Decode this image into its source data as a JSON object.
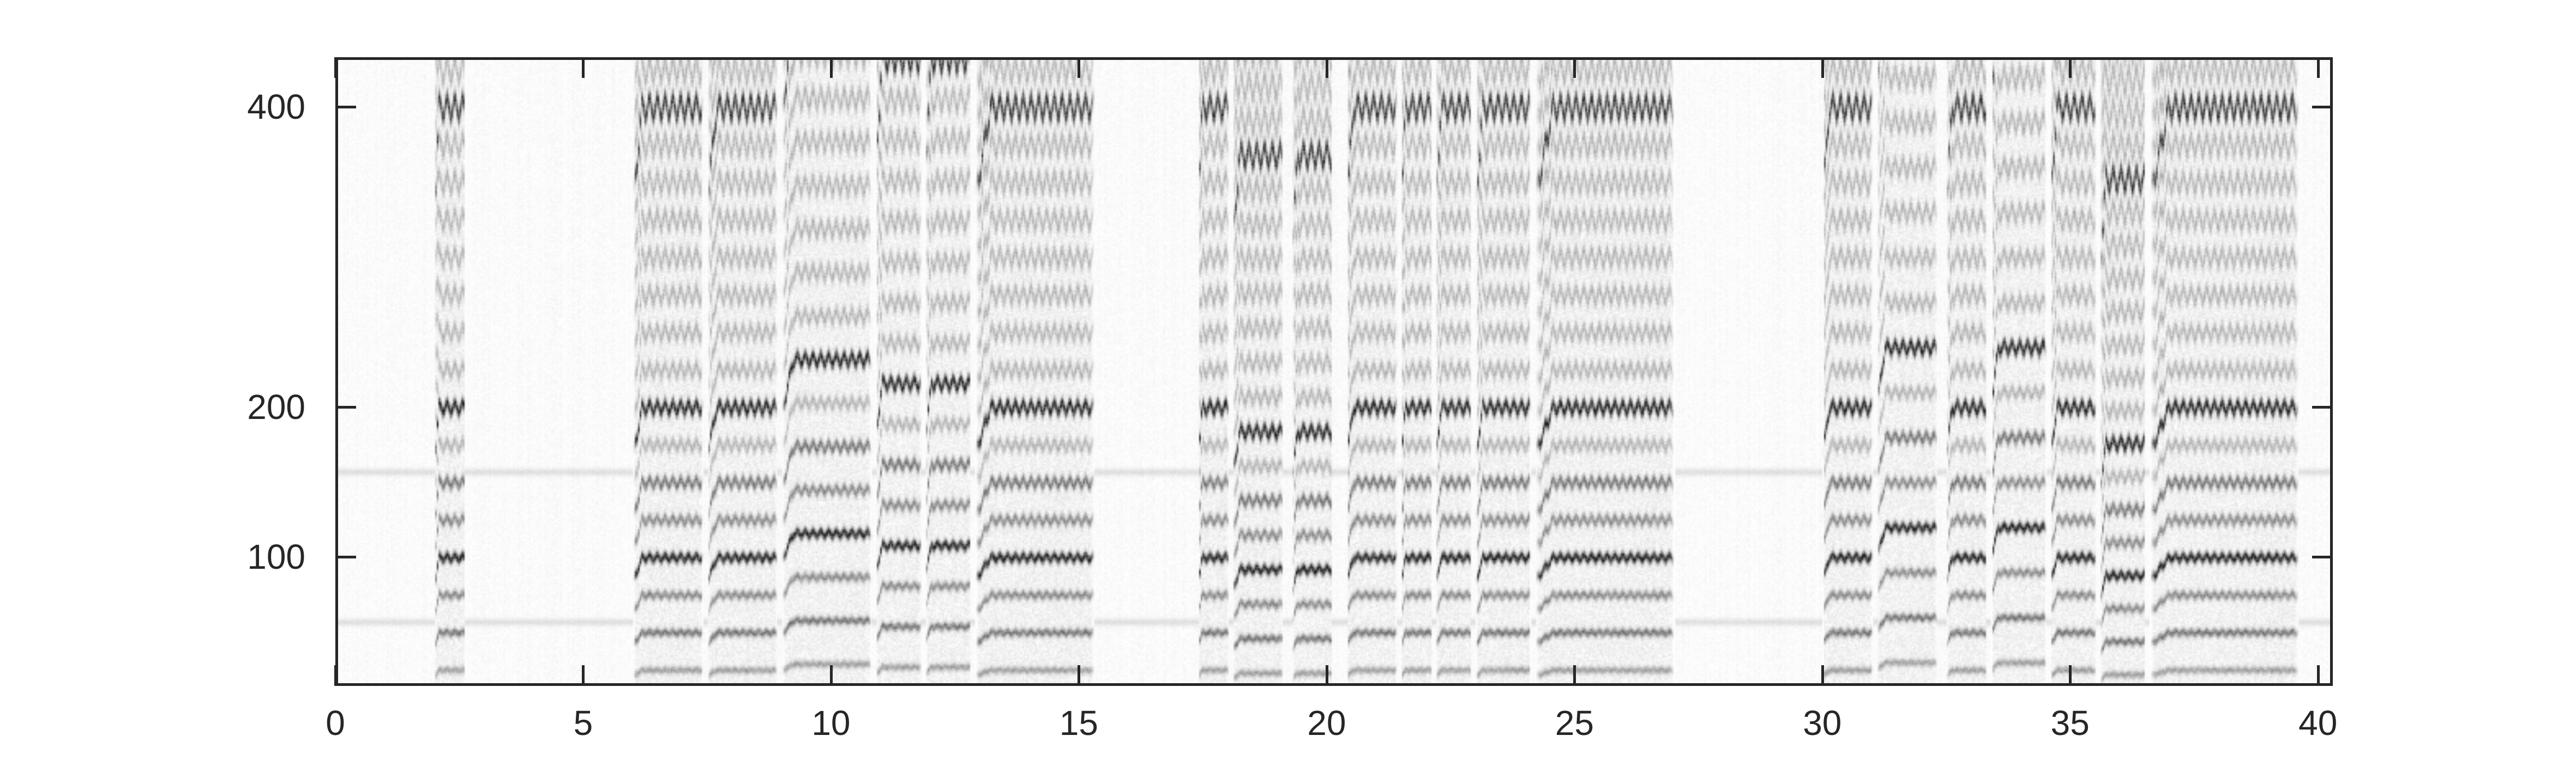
{
  "chart_data": {
    "type": "heatmap",
    "title": "",
    "xlabel": "",
    "ylabel": "",
    "xlim": [
      0,
      40.3
    ],
    "ylim": [
      14,
      433
    ],
    "xticks": [
      "0",
      "5",
      "10",
      "15",
      "20",
      "25",
      "30",
      "35",
      "40"
    ],
    "yticks": [
      "100",
      "200",
      "400"
    ],
    "xtick_values": [
      0,
      5,
      10,
      15,
      20,
      25,
      30,
      35,
      40
    ],
    "ytick_values": [
      100,
      200,
      400
    ],
    "colormap": "gray-reversed",
    "colors": {
      "background": "#ffffff",
      "ink": "#262626"
    },
    "voiced_segments": [
      {
        "start": 2.0,
        "end": 2.6,
        "f0": 25
      },
      {
        "start": 6.0,
        "end": 7.4,
        "f0": 25
      },
      {
        "start": 7.5,
        "end": 8.9,
        "f0": 25
      },
      {
        "start": 9.0,
        "end": 10.8,
        "f0": 29
      },
      {
        "start": 10.9,
        "end": 11.8,
        "f0": 27
      },
      {
        "start": 11.9,
        "end": 12.8,
        "f0": 27
      },
      {
        "start": 12.9,
        "end": 15.3,
        "f0": 25
      },
      {
        "start": 17.4,
        "end": 18.0,
        "f0": 25
      },
      {
        "start": 18.1,
        "end": 19.1,
        "f0": 23
      },
      {
        "start": 19.3,
        "end": 20.1,
        "f0": 23
      },
      {
        "start": 20.4,
        "end": 21.4,
        "f0": 25
      },
      {
        "start": 21.5,
        "end": 22.1,
        "f0": 25
      },
      {
        "start": 22.2,
        "end": 22.9,
        "f0": 25
      },
      {
        "start": 23.0,
        "end": 24.1,
        "f0": 25
      },
      {
        "start": 24.2,
        "end": 27.0,
        "f0": 25
      },
      {
        "start": 30.0,
        "end": 31.0,
        "f0": 25
      },
      {
        "start": 31.1,
        "end": 32.3,
        "f0": 30
      },
      {
        "start": 32.5,
        "end": 33.3,
        "f0": 25
      },
      {
        "start": 33.4,
        "end": 34.5,
        "f0": 30
      },
      {
        "start": 34.6,
        "end": 35.5,
        "f0": 25
      },
      {
        "start": 35.6,
        "end": 36.5,
        "f0": 22
      },
      {
        "start": 36.6,
        "end": 39.6,
        "f0": 25
      }
    ],
    "background_tones": [
      57,
      157
    ]
  }
}
